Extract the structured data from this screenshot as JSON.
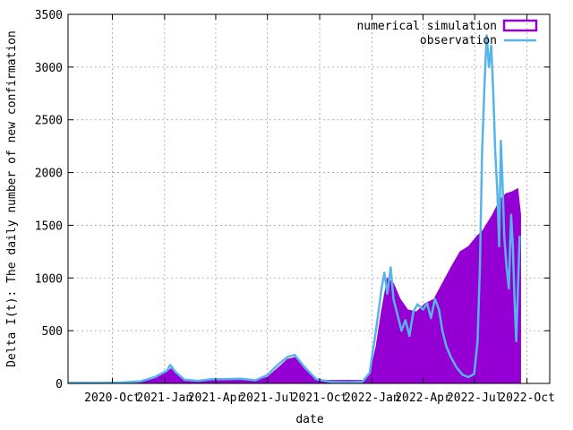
{
  "chart_data": {
    "type": "bar",
    "title": "",
    "xlabel": "date",
    "ylabel": "Delta I(t): The daily number of new confirmation",
    "ylim": [
      0,
      3500
    ],
    "xlim": [
      "2020-07-15",
      "2022-11-10"
    ],
    "grid": true,
    "legend_position": "top-right",
    "y_ticks": [
      "0",
      "500",
      "1000",
      "1500",
      "2000",
      "2500",
      "3000",
      "3500"
    ],
    "x_ticks": [
      {
        "date": "2020-10-01",
        "label": "2020-Oct"
      },
      {
        "date": "2021-01-01",
        "label": "2021-Jan"
      },
      {
        "date": "2021-04-01",
        "label": "2021-Apr"
      },
      {
        "date": "2021-07-01",
        "label": "2021-Jul"
      },
      {
        "date": "2021-10-01",
        "label": "2021-Oct"
      },
      {
        "date": "2022-01-01",
        "label": "2022-Jan"
      },
      {
        "date": "2022-04-01",
        "label": "2022-Apr"
      },
      {
        "date": "2022-07-01",
        "label": "2022-Jul"
      },
      {
        "date": "2022-10-01",
        "label": "2022-Oct"
      }
    ],
    "series": [
      {
        "name": "numerical simulation",
        "type": "bar",
        "color": "#9400d3",
        "points": [
          [
            "2020-07-15",
            5
          ],
          [
            "2020-09-01",
            8
          ],
          [
            "2020-10-15",
            10
          ],
          [
            "2020-11-20",
            25
          ],
          [
            "2020-12-15",
            60
          ],
          [
            "2021-01-05",
            110
          ],
          [
            "2021-01-12",
            140
          ],
          [
            "2021-01-20",
            110
          ],
          [
            "2021-02-05",
            40
          ],
          [
            "2021-03-01",
            25
          ],
          [
            "2021-03-25",
            40
          ],
          [
            "2021-04-15",
            45
          ],
          [
            "2021-05-15",
            40
          ],
          [
            "2021-06-10",
            30
          ],
          [
            "2021-07-01",
            60
          ],
          [
            "2021-07-20",
            150
          ],
          [
            "2021-08-05",
            230
          ],
          [
            "2021-08-20",
            250
          ],
          [
            "2021-09-05",
            130
          ],
          [
            "2021-09-25",
            40
          ],
          [
            "2021-10-20",
            30
          ],
          [
            "2021-11-20",
            30
          ],
          [
            "2021-12-15",
            30
          ],
          [
            "2021-12-28",
            80
          ],
          [
            "2022-01-08",
            350
          ],
          [
            "2022-01-18",
            700
          ],
          [
            "2022-01-28",
            1000
          ],
          [
            "2022-02-08",
            950
          ],
          [
            "2022-02-20",
            800
          ],
          [
            "2022-03-05",
            700
          ],
          [
            "2022-03-20",
            680
          ],
          [
            "2022-04-05",
            760
          ],
          [
            "2022-04-20",
            800
          ],
          [
            "2022-05-05",
            950
          ],
          [
            "2022-05-20",
            1100
          ],
          [
            "2022-06-05",
            1250
          ],
          [
            "2022-06-20",
            1300
          ],
          [
            "2022-07-05",
            1400
          ],
          [
            "2022-07-15",
            1450
          ],
          [
            "2022-08-01",
            1600
          ],
          [
            "2022-08-15",
            1750
          ],
          [
            "2022-08-25",
            1800
          ],
          [
            "2022-09-05",
            1820
          ],
          [
            "2022-09-15",
            1850
          ],
          [
            "2022-09-20",
            1600
          ]
        ]
      },
      {
        "name": "observation",
        "type": "line",
        "color": "#56b4e9",
        "points": [
          [
            "2020-07-15",
            5
          ],
          [
            "2020-09-01",
            5
          ],
          [
            "2020-10-15",
            8
          ],
          [
            "2020-11-20",
            20
          ],
          [
            "2020-12-15",
            60
          ],
          [
            "2021-01-05",
            120
          ],
          [
            "2021-01-11",
            175
          ],
          [
            "2021-01-20",
            110
          ],
          [
            "2021-02-05",
            35
          ],
          [
            "2021-03-01",
            25
          ],
          [
            "2021-03-25",
            40
          ],
          [
            "2021-04-15",
            40
          ],
          [
            "2021-05-15",
            45
          ],
          [
            "2021-06-10",
            30
          ],
          [
            "2021-07-01",
            80
          ],
          [
            "2021-07-20",
            180
          ],
          [
            "2021-08-05",
            250
          ],
          [
            "2021-08-18",
            270
          ],
          [
            "2021-09-05",
            150
          ],
          [
            "2021-09-25",
            40
          ],
          [
            "2021-10-20",
            15
          ],
          [
            "2021-11-20",
            10
          ],
          [
            "2021-12-15",
            15
          ],
          [
            "2021-12-28",
            100
          ],
          [
            "2022-01-08",
            500
          ],
          [
            "2022-01-18",
            900
          ],
          [
            "2022-01-23",
            1050
          ],
          [
            "2022-01-28",
            850
          ],
          [
            "2022-02-03",
            1100
          ],
          [
            "2022-02-08",
            800
          ],
          [
            "2022-02-15",
            650
          ],
          [
            "2022-02-22",
            500
          ],
          [
            "2022-03-01",
            600
          ],
          [
            "2022-03-08",
            450
          ],
          [
            "2022-03-15",
            680
          ],
          [
            "2022-03-22",
            750
          ],
          [
            "2022-04-01",
            700
          ],
          [
            "2022-04-08",
            760
          ],
          [
            "2022-04-15",
            620
          ],
          [
            "2022-04-22",
            800
          ],
          [
            "2022-04-29",
            700
          ],
          [
            "2022-05-05",
            500
          ],
          [
            "2022-05-12",
            350
          ],
          [
            "2022-05-20",
            250
          ],
          [
            "2022-05-30",
            150
          ],
          [
            "2022-06-10",
            80
          ],
          [
            "2022-06-20",
            60
          ],
          [
            "2022-06-30",
            90
          ],
          [
            "2022-07-06",
            400
          ],
          [
            "2022-07-10",
            1100
          ],
          [
            "2022-07-14",
            2200
          ],
          [
            "2022-07-18",
            2800
          ],
          [
            "2022-07-22",
            3300
          ],
          [
            "2022-07-26",
            3000
          ],
          [
            "2022-07-30",
            3200
          ],
          [
            "2022-08-03",
            2700
          ],
          [
            "2022-08-06",
            2200
          ],
          [
            "2022-08-10",
            1800
          ],
          [
            "2022-08-13",
            1300
          ],
          [
            "2022-08-16",
            2300
          ],
          [
            "2022-08-19",
            1900
          ],
          [
            "2022-08-22",
            1400
          ],
          [
            "2022-08-26",
            1100
          ],
          [
            "2022-08-30",
            900
          ],
          [
            "2022-09-03",
            1600
          ],
          [
            "2022-09-06",
            1300
          ],
          [
            "2022-09-09",
            800
          ],
          [
            "2022-09-12",
            400
          ],
          [
            "2022-09-15",
            900
          ],
          [
            "2022-09-18",
            1400
          ]
        ]
      }
    ]
  }
}
